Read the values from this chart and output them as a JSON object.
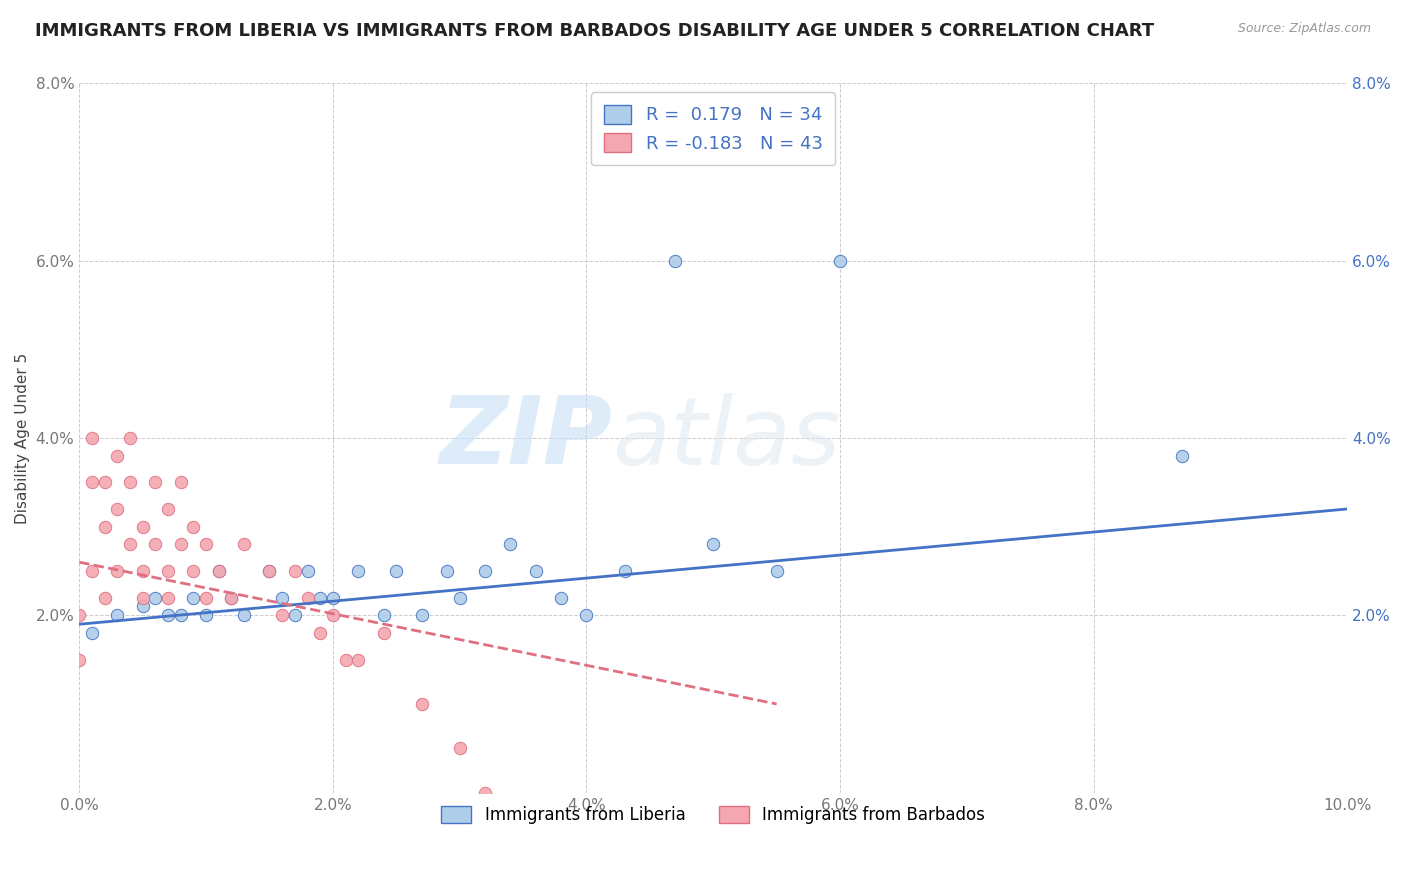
{
  "title": "IMMIGRANTS FROM LIBERIA VS IMMIGRANTS FROM BARBADOS DISABILITY AGE UNDER 5 CORRELATION CHART",
  "source": "Source: ZipAtlas.com",
  "ylabel": "Disability Age Under 5",
  "xlim": [
    0.0,
    0.1
  ],
  "ylim": [
    0.0,
    0.08
  ],
  "xticks": [
    0.0,
    0.02,
    0.04,
    0.06,
    0.08,
    0.1
  ],
  "yticks": [
    0.0,
    0.02,
    0.04,
    0.06,
    0.08
  ],
  "xticklabels": [
    "0.0%",
    "2.0%",
    "4.0%",
    "6.0%",
    "8.0%",
    "10.0%"
  ],
  "yticklabels_left": [
    "",
    "2.0%",
    "4.0%",
    "6.0%",
    "8.0%"
  ],
  "yticklabels_right": [
    "",
    "2.0%",
    "4.0%",
    "6.0%",
    "8.0%"
  ],
  "legend_liberia": "R =  0.179   N = 34",
  "legend_barbados": "R = -0.183   N = 43",
  "liberia_color": "#aecde8",
  "barbados_color": "#f4a7b0",
  "liberia_line_color": "#4472c4",
  "barbados_line_color": "#e07080",
  "watermark_zip": "ZIP",
  "watermark_atlas": "atlas",
  "liberia_scatter_x": [
    0.001,
    0.003,
    0.005,
    0.006,
    0.007,
    0.008,
    0.009,
    0.01,
    0.011,
    0.012,
    0.013,
    0.015,
    0.016,
    0.017,
    0.018,
    0.019,
    0.02,
    0.022,
    0.024,
    0.025,
    0.027,
    0.029,
    0.03,
    0.032,
    0.034,
    0.036,
    0.038,
    0.04,
    0.043,
    0.047,
    0.05,
    0.055,
    0.06,
    0.087
  ],
  "liberia_scatter_y": [
    0.018,
    0.02,
    0.021,
    0.022,
    0.02,
    0.02,
    0.022,
    0.02,
    0.025,
    0.022,
    0.02,
    0.025,
    0.022,
    0.02,
    0.025,
    0.022,
    0.022,
    0.025,
    0.02,
    0.025,
    0.02,
    0.025,
    0.022,
    0.025,
    0.028,
    0.025,
    0.022,
    0.02,
    0.025,
    0.06,
    0.028,
    0.025,
    0.06,
    0.038
  ],
  "barbados_scatter_x": [
    0.0,
    0.0,
    0.001,
    0.001,
    0.001,
    0.002,
    0.002,
    0.002,
    0.003,
    0.003,
    0.003,
    0.004,
    0.004,
    0.004,
    0.005,
    0.005,
    0.005,
    0.006,
    0.006,
    0.007,
    0.007,
    0.007,
    0.008,
    0.008,
    0.009,
    0.009,
    0.01,
    0.01,
    0.011,
    0.012,
    0.013,
    0.015,
    0.016,
    0.017,
    0.018,
    0.019,
    0.02,
    0.021,
    0.022,
    0.024,
    0.027,
    0.03,
    0.032
  ],
  "barbados_scatter_y": [
    0.015,
    0.02,
    0.035,
    0.04,
    0.025,
    0.03,
    0.022,
    0.035,
    0.025,
    0.032,
    0.038,
    0.028,
    0.035,
    0.04,
    0.025,
    0.03,
    0.022,
    0.028,
    0.035,
    0.025,
    0.032,
    0.022,
    0.028,
    0.035,
    0.025,
    0.03,
    0.022,
    0.028,
    0.025,
    0.022,
    0.028,
    0.025,
    0.02,
    0.025,
    0.022,
    0.018,
    0.02,
    0.015,
    0.015,
    0.018,
    0.01,
    0.005,
    0.0
  ],
  "liberia_trendline_x": [
    0.0,
    0.1
  ],
  "liberia_trendline_y": [
    0.019,
    0.032
  ],
  "barbados_trendline_x": [
    0.0,
    0.055
  ],
  "barbados_trendline_y": [
    0.026,
    0.01
  ],
  "background_color": "#ffffff",
  "grid_color": "#cccccc",
  "title_fontsize": 13,
  "axis_fontsize": 11,
  "tick_fontsize": 11,
  "scatter_size": 80
}
